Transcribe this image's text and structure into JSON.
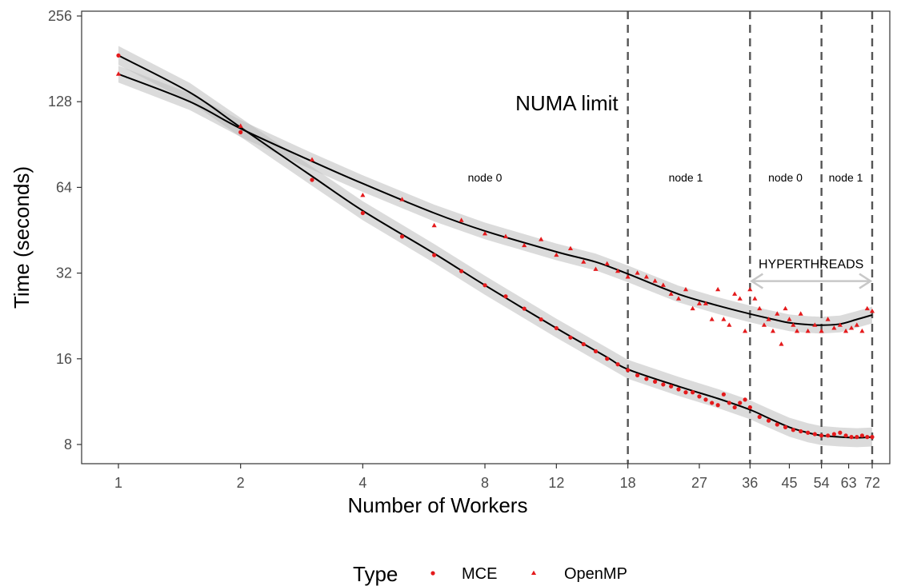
{
  "chart_data": {
    "type": "scatter",
    "xlabel": "Number of Workers",
    "ylabel": "Time (seconds)",
    "x_scale": "log",
    "y_scale": "log2",
    "xlim": [
      1,
      72
    ],
    "ylim": [
      8,
      256
    ],
    "x_ticks": [
      1,
      2,
      4,
      8,
      12,
      18,
      27,
      36,
      45,
      54,
      63,
      72
    ],
    "y_ticks": [
      8,
      16,
      32,
      64,
      128,
      256
    ],
    "grid": false,
    "legend": {
      "title": "Type",
      "placement": "bottom",
      "entries": [
        "MCE",
        "OpenMP"
      ]
    },
    "point_color": "#e41a1c",
    "line_color": "#000000",
    "band_color": "#bdbdbd",
    "annotations": {
      "numa": "NUMA limit",
      "hyperthreads": "HYPERTHREADS",
      "regions": [
        {
          "label": "node 0",
          "x": 8
        },
        {
          "label": "node 1",
          "x": 25
        },
        {
          "label": "node 0",
          "x": 44
        },
        {
          "label": "node 1",
          "x": 62
        }
      ],
      "vlines": [
        18,
        36,
        54,
        72
      ],
      "hyperthreads_arrow": [
        36,
        72
      ],
      "hyperthreads_y": 30
    },
    "series": [
      {
        "name": "MCE",
        "marker": "circle",
        "points": [
          [
            1,
            186
          ],
          [
            2,
            100
          ],
          [
            3,
            68
          ],
          [
            4,
            52
          ],
          [
            5,
            43
          ],
          [
            6,
            37
          ],
          [
            7,
            32.5
          ],
          [
            8,
            29
          ],
          [
            9,
            26.5
          ],
          [
            10,
            24
          ],
          [
            11,
            22
          ],
          [
            12,
            20.5
          ],
          [
            13,
            19
          ],
          [
            14,
            18
          ],
          [
            15,
            17
          ],
          [
            16,
            16
          ],
          [
            17,
            15.3
          ],
          [
            18,
            14.6
          ],
          [
            19,
            14
          ],
          [
            20,
            13.6
          ],
          [
            21,
            13.3
          ],
          [
            22,
            13
          ],
          [
            23,
            12.8
          ],
          [
            24,
            12.5
          ],
          [
            25,
            12.2
          ],
          [
            26,
            12.2
          ],
          [
            27,
            11.8
          ],
          [
            28,
            11.5
          ],
          [
            29,
            11.2
          ],
          [
            30,
            11
          ],
          [
            31,
            12
          ],
          [
            32,
            11.2
          ],
          [
            33,
            10.8
          ],
          [
            34,
            11.2
          ],
          [
            35,
            11.5
          ],
          [
            36,
            10.8
          ],
          [
            38,
            10
          ],
          [
            40,
            9.7
          ],
          [
            42,
            9.4
          ],
          [
            44,
            9.2
          ],
          [
            46,
            9
          ],
          [
            48,
            8.9
          ],
          [
            50,
            8.8
          ],
          [
            52,
            8.7
          ],
          [
            54,
            8.6
          ],
          [
            56,
            8.6
          ],
          [
            58,
            8.7
          ],
          [
            60,
            8.8
          ],
          [
            62,
            8.6
          ],
          [
            64,
            8.5
          ],
          [
            66,
            8.5
          ],
          [
            68,
            8.6
          ],
          [
            70,
            8.5
          ],
          [
            72,
            8.5
          ]
        ]
      },
      {
        "name": "OpenMP",
        "marker": "triangle",
        "points": [
          [
            1,
            160
          ],
          [
            2,
            105
          ],
          [
            3,
            80
          ],
          [
            4,
            60
          ],
          [
            5,
            58
          ],
          [
            6,
            47
          ],
          [
            7,
            49
          ],
          [
            8,
            44
          ],
          [
            9,
            43
          ],
          [
            10,
            40
          ],
          [
            11,
            42
          ],
          [
            12,
            37
          ],
          [
            13,
            39
          ],
          [
            14,
            35
          ],
          [
            15,
            33
          ],
          [
            16,
            34.5
          ],
          [
            17,
            32.5
          ],
          [
            18,
            31
          ],
          [
            19,
            32
          ],
          [
            20,
            31
          ],
          [
            21,
            30
          ],
          [
            22,
            29
          ],
          [
            23,
            27
          ],
          [
            24,
            26
          ],
          [
            25,
            28
          ],
          [
            26,
            24
          ],
          [
            27,
            25
          ],
          [
            28,
            25
          ],
          [
            29,
            22
          ],
          [
            30,
            28
          ],
          [
            31,
            22
          ],
          [
            32,
            21
          ],
          [
            33,
            27
          ],
          [
            34,
            26
          ],
          [
            35,
            20
          ],
          [
            36,
            28
          ],
          [
            37,
            26
          ],
          [
            38,
            24
          ],
          [
            39,
            21
          ],
          [
            40,
            22
          ],
          [
            41,
            20
          ],
          [
            42,
            23
          ],
          [
            43,
            18
          ],
          [
            44,
            24
          ],
          [
            45,
            22
          ],
          [
            46,
            21
          ],
          [
            47,
            20
          ],
          [
            48,
            23
          ],
          [
            50,
            20
          ],
          [
            52,
            21
          ],
          [
            54,
            20
          ],
          [
            56,
            22
          ],
          [
            58,
            20.5
          ],
          [
            60,
            21
          ],
          [
            62,
            20
          ],
          [
            64,
            20.5
          ],
          [
            66,
            21
          ],
          [
            68,
            20
          ],
          [
            70,
            24
          ],
          [
            72,
            23.5
          ]
        ]
      }
    ],
    "fit_lines": [
      {
        "name": "MCE",
        "points": [
          [
            1,
            186
          ],
          [
            1.5,
            138
          ],
          [
            2,
            104
          ],
          [
            3,
            70
          ],
          [
            4,
            53
          ],
          [
            6,
            37.5
          ],
          [
            8,
            29
          ],
          [
            12,
            20.5
          ],
          [
            16,
            16.2
          ],
          [
            18,
            14.7
          ],
          [
            24,
            12.8
          ],
          [
            30,
            11.6
          ],
          [
            36,
            10.6
          ],
          [
            40,
            9.9
          ],
          [
            45,
            9.2
          ],
          [
            50,
            8.8
          ],
          [
            54,
            8.6
          ],
          [
            60,
            8.5
          ],
          [
            66,
            8.45
          ],
          [
            72,
            8.5
          ]
        ],
        "band": 0.08
      },
      {
        "name": "OpenMP",
        "points": [
          [
            1,
            160
          ],
          [
            1.5,
            128
          ],
          [
            2,
            103
          ],
          [
            3,
            79
          ],
          [
            4,
            66
          ],
          [
            6,
            52
          ],
          [
            8,
            45
          ],
          [
            12,
            38
          ],
          [
            15,
            35
          ],
          [
            18,
            31.8
          ],
          [
            24,
            27
          ],
          [
            30,
            24.6
          ],
          [
            36,
            23
          ],
          [
            40,
            22.2
          ],
          [
            45,
            21.4
          ],
          [
            50,
            21.1
          ],
          [
            54,
            21
          ],
          [
            60,
            21.2
          ],
          [
            66,
            22
          ],
          [
            72,
            22.8
          ]
        ],
        "band": 0.07
      }
    ]
  }
}
